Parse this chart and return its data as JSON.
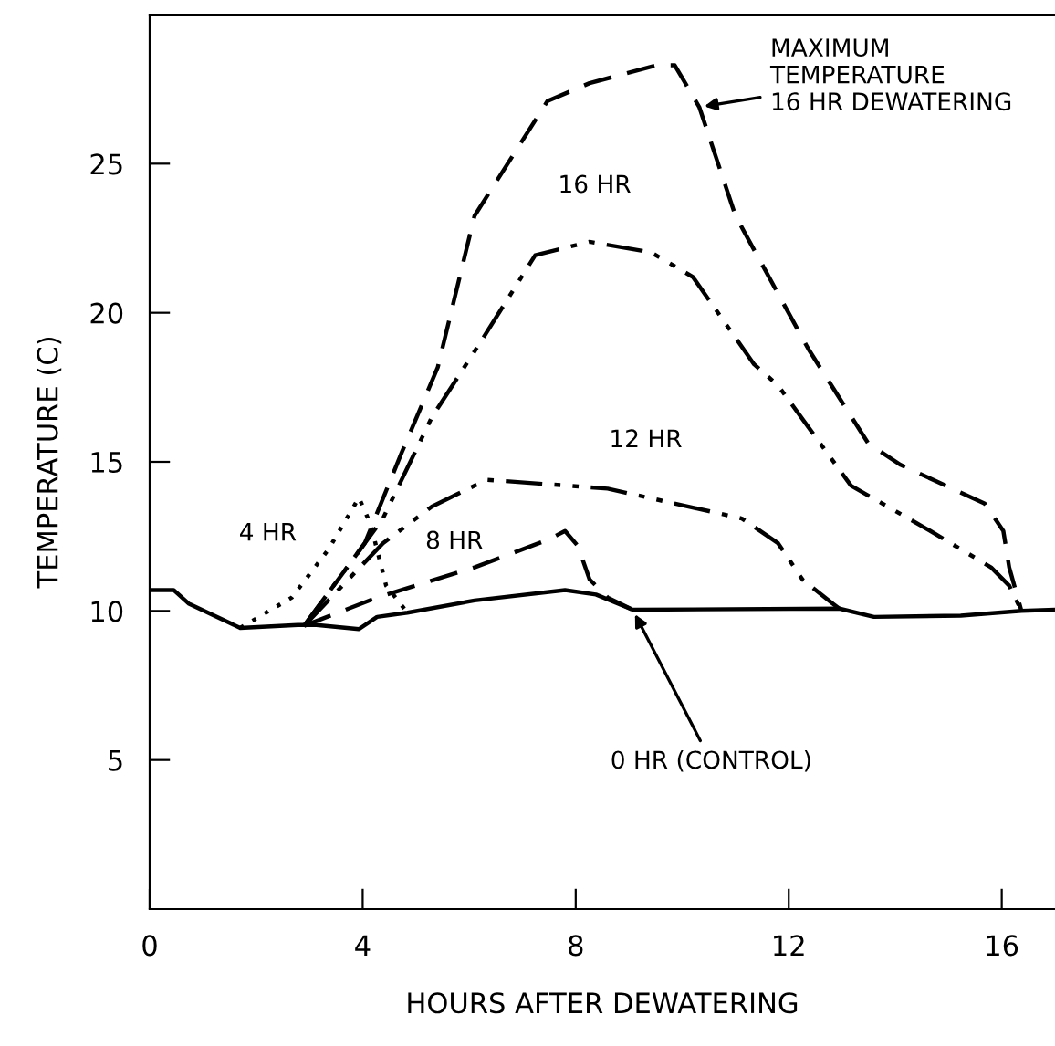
{
  "chart_data": {
    "type": "line",
    "xlabel": "HOURS AFTER DEWATERING",
    "ylabel": "TEMPERATURE (C)",
    "xlim": [
      0,
      17
    ],
    "ylim": [
      0,
      30
    ],
    "xticks": [
      0,
      4,
      8,
      12,
      16
    ],
    "yticks": [
      5,
      10,
      15,
      20,
      25
    ],
    "grid": false,
    "legend": false,
    "series": [
      {
        "name": "0 HR (CONTROL)",
        "color": "#000000",
        "line_style": "solid",
        "x": [
          0,
          0.45,
          0.73,
          1.7,
          2.78,
          3.13,
          3.93,
          4.27,
          4.84,
          6.1,
          7.8,
          8.38,
          9.07,
          12.95,
          13.6,
          15.23,
          16.37,
          17.0
        ],
        "values": [
          10.7,
          10.7,
          10.25,
          9.43,
          9.53,
          9.53,
          9.39,
          9.8,
          9.94,
          10.35,
          10.7,
          10.55,
          10.04,
          10.08,
          9.8,
          9.84,
          10.0,
          10.04
        ]
      },
      {
        "name": "4 HR",
        "color": "#000000",
        "line_style": "dotted",
        "x": [
          1.7,
          2.67,
          3.36,
          3.93,
          4.15,
          4.44,
          4.84
        ],
        "values": [
          9.43,
          10.45,
          12.07,
          13.8,
          12.9,
          10.85,
          9.94
        ]
      },
      {
        "name": "8 HR",
        "color": "#000000",
        "line_style": "dashed",
        "x": [
          2.9,
          4.27,
          6.1,
          7.47,
          7.8,
          8.04,
          8.26,
          8.6,
          9.07
        ],
        "values": [
          9.5,
          10.45,
          11.46,
          12.38,
          12.68,
          12.18,
          11.06,
          10.45,
          10.04
        ]
      },
      {
        "name": "12 HR",
        "color": "#000000",
        "line_style": "dashdot",
        "x": [
          2.9,
          4.38,
          5.3,
          6.33,
          8.6,
          11.12,
          11.8,
          12.26,
          12.83,
          12.95
        ],
        "values": [
          9.5,
          12.27,
          13.5,
          14.4,
          14.1,
          13.1,
          12.27,
          11.05,
          10.24,
          10.08
        ]
      },
      {
        "name": "16 HR",
        "color": "#000000",
        "line_style": "dashdot",
        "x": [
          2.9,
          4.38,
          5.3,
          6.2,
          7.24,
          8.26,
          9.41,
          10.2,
          11.35,
          11.8,
          13.17,
          14.66,
          15.8,
          16.14,
          16.37
        ],
        "values": [
          9.5,
          13.1,
          16.5,
          18.98,
          21.93,
          22.38,
          22.03,
          21.2,
          18.27,
          17.56,
          14.2,
          12.68,
          11.46,
          10.85,
          10.0
        ]
      },
      {
        "name": "MAXIMUM\nTEMPERATURE\n16 HR DEWATERING",
        "color": "#000000",
        "line_style": "dashed",
        "x": [
          2.9,
          4.04,
          4.73,
          5.41,
          6.1,
          7.47,
          8.26,
          9.52,
          9.86,
          10.32,
          11.0,
          12.37,
          13.5,
          14.1,
          15.68,
          16.03,
          16.14,
          16.37
        ],
        "values": [
          9.5,
          12.27,
          15.3,
          18.17,
          23.25,
          27.1,
          27.7,
          28.3,
          28.3,
          26.9,
          23.25,
          18.78,
          15.6,
          14.9,
          13.6,
          12.68,
          11.46,
          10.0
        ]
      }
    ]
  }
}
